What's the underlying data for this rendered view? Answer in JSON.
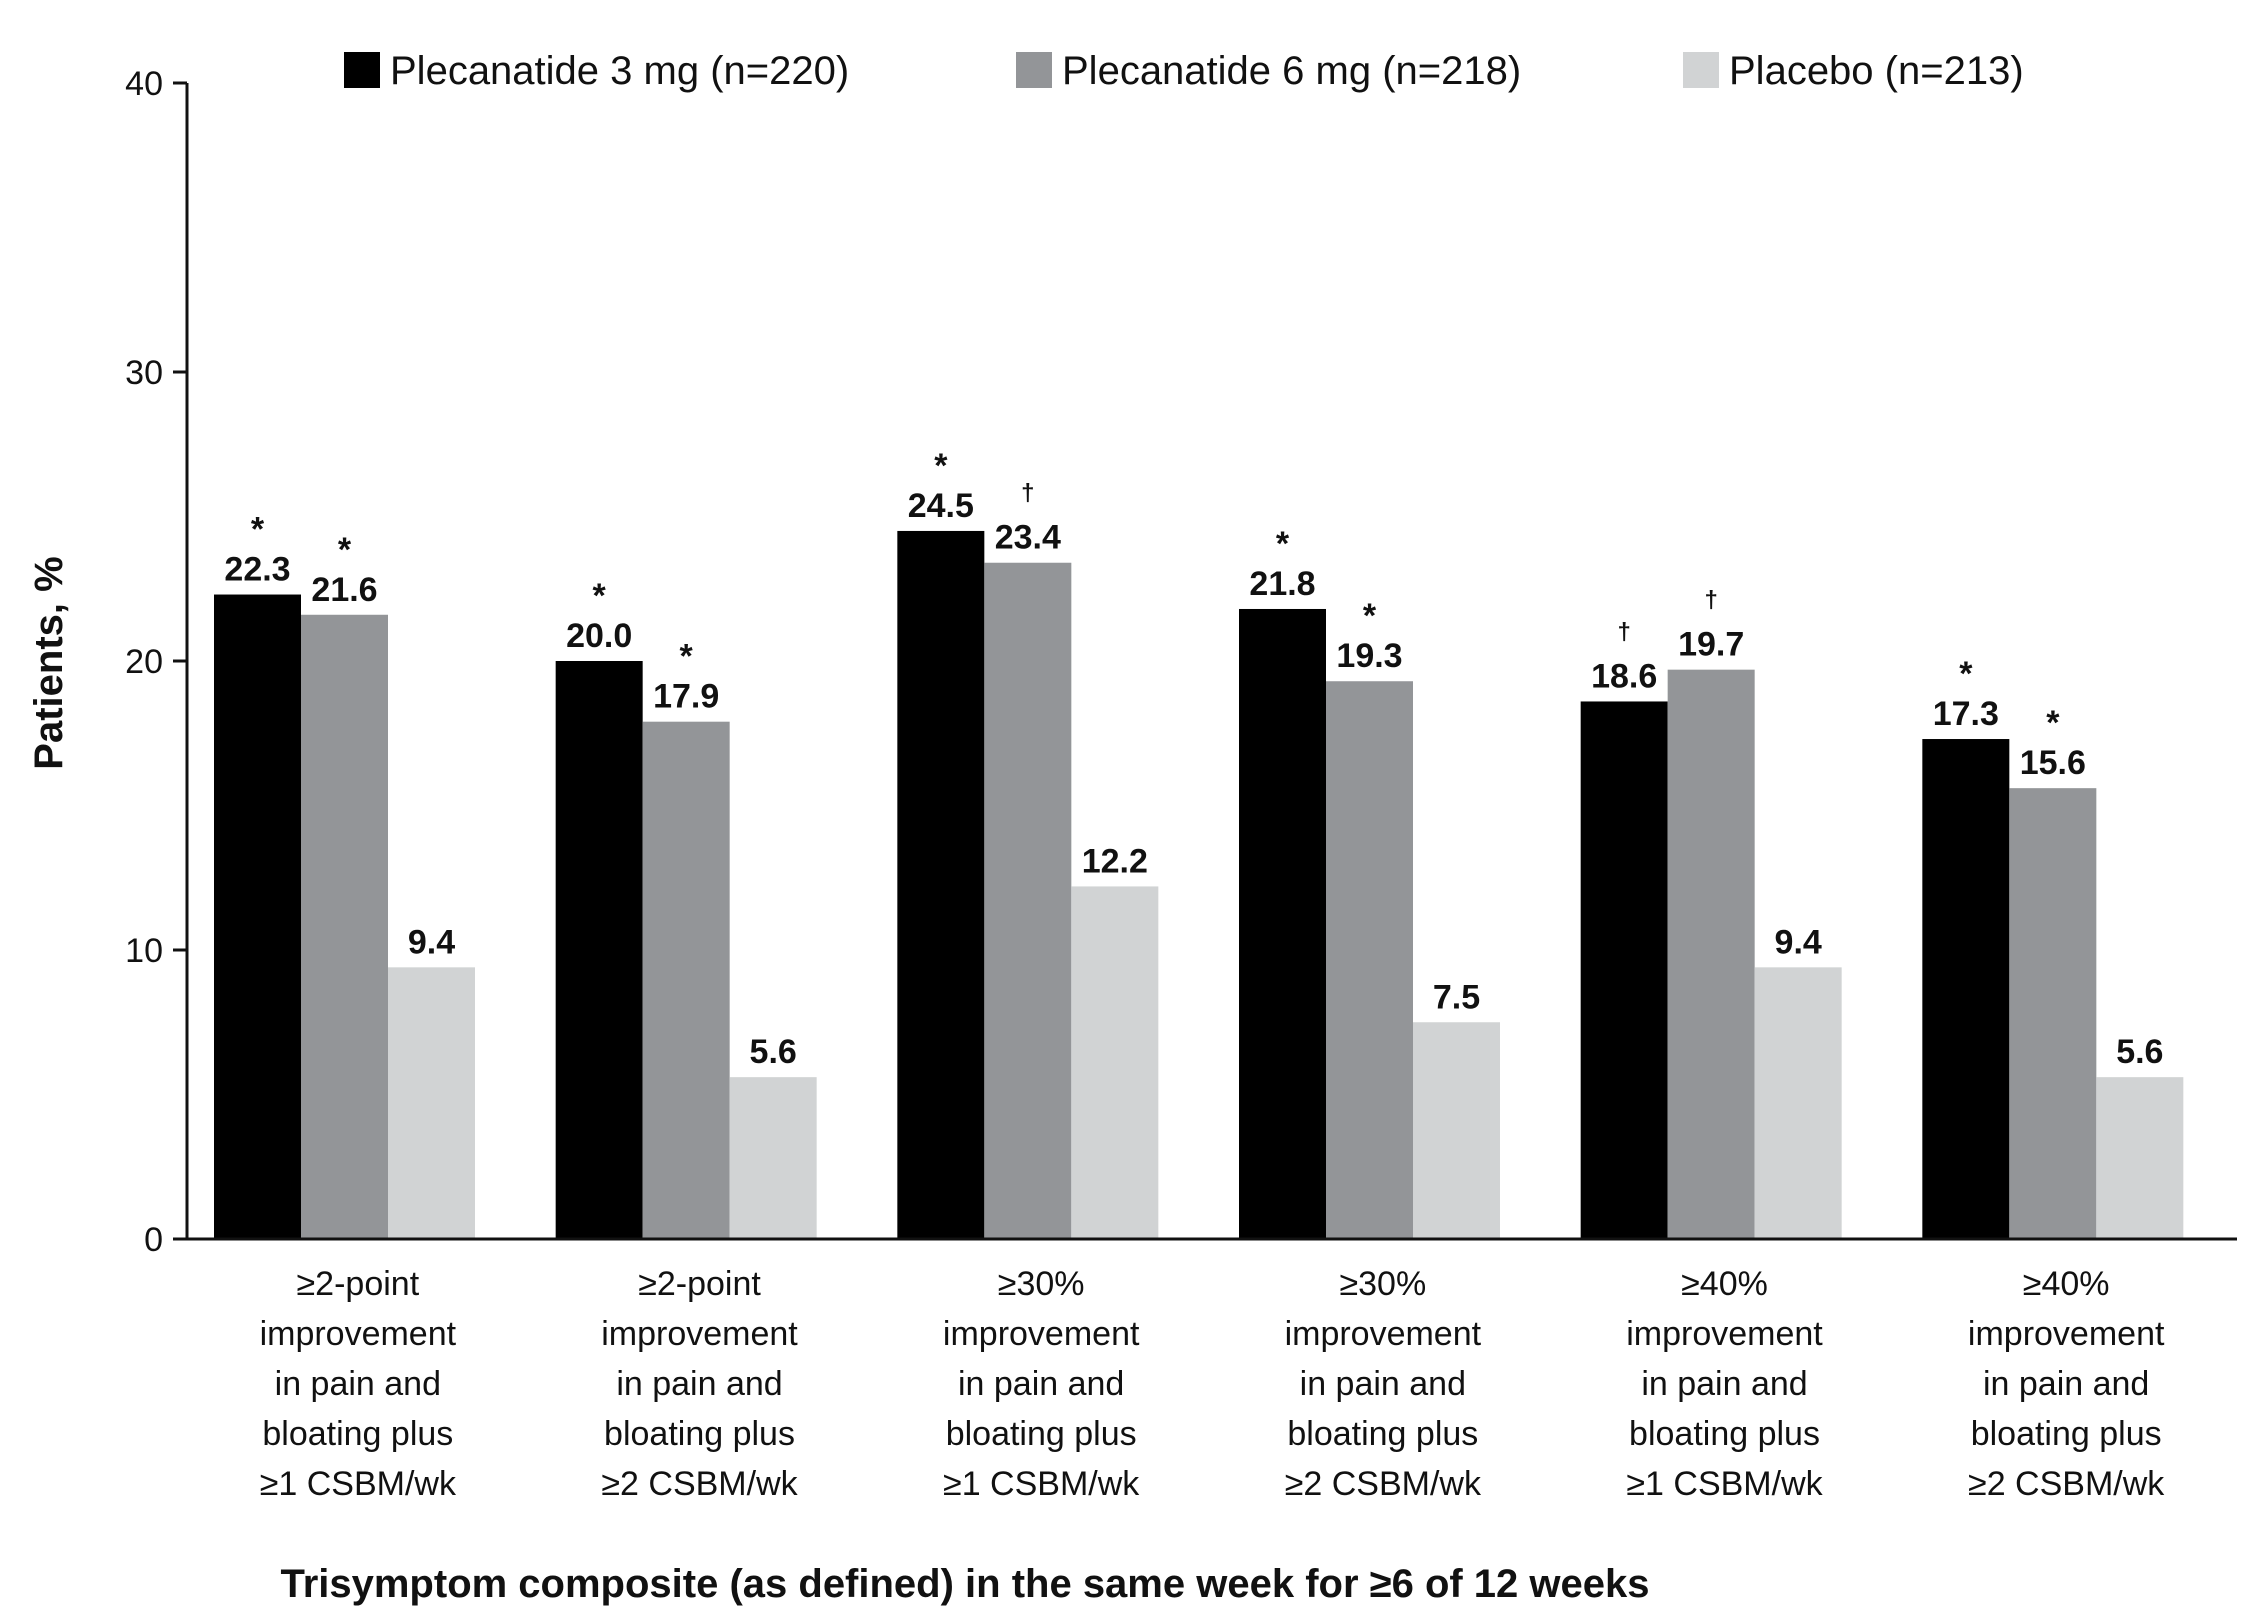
{
  "chart_data": {
    "type": "bar",
    "title": "",
    "xlabel": "Trisymptom composite (as defined) in the same week for ≥6 of 12 weeks",
    "ylabel": "Patients, %",
    "ylim": [
      0,
      40
    ],
    "yticks": [
      0,
      10,
      20,
      30,
      40
    ],
    "grid": false,
    "legend_position": "top",
    "categories": [
      [
        "≥2-point",
        "improvement",
        "in pain and",
        "bloating plus",
        "≥1 CSBM/wk"
      ],
      [
        "≥2-point",
        "improvement",
        "in pain and",
        "bloating plus",
        "≥2 CSBM/wk"
      ],
      [
        "≥30%",
        "improvement",
        "in pain and",
        "bloating plus",
        "≥1 CSBM/wk"
      ],
      [
        "≥30%",
        "improvement",
        "in pain and",
        "bloating plus",
        "≥2 CSBM/wk"
      ],
      [
        "≥40%",
        "improvement",
        "in pain and",
        "bloating plus",
        "≥1 CSBM/wk"
      ],
      [
        "≥40%",
        "improvement",
        "in pain and",
        "bloating plus",
        "≥2 CSBM/wk"
      ]
    ],
    "series": [
      {
        "name": "Plecanatide 3 mg (n=220)",
        "color": "#000000",
        "values": [
          22.3,
          20.0,
          24.5,
          21.8,
          18.6,
          17.3
        ],
        "labels": [
          "22.3",
          "20.0",
          "24.5",
          "21.8",
          "18.6",
          "17.3"
        ],
        "significance": [
          "*",
          "*",
          "*",
          "*",
          "†",
          "*"
        ]
      },
      {
        "name": "Plecanatide 6 mg (n=218)",
        "color": "#939598",
        "values": [
          21.6,
          17.9,
          23.4,
          19.3,
          19.7,
          15.6
        ],
        "labels": [
          "21.6",
          "17.9",
          "23.4",
          "19.3",
          "19.7",
          "15.6"
        ],
        "significance": [
          "*",
          "*",
          "†",
          "*",
          "†",
          "*"
        ]
      },
      {
        "name": "Placebo (n=213)",
        "color": "#d1d3d4",
        "values": [
          9.4,
          5.6,
          12.2,
          7.5,
          9.4,
          5.6
        ],
        "labels": [
          "9.4",
          "5.6",
          "12.2",
          "7.5",
          "9.4",
          "5.6"
        ],
        "significance": [
          "",
          "",
          "",
          "",
          "",
          ""
        ]
      }
    ]
  }
}
